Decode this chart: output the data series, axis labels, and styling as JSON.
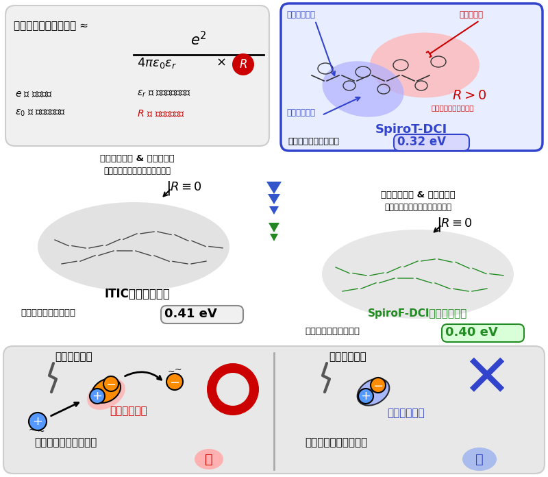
{
  "bg": "#ffffff",
  "formula_box_bg": "#f0f0f0",
  "formula_box_edge": "#cccccc",
  "spiroT_box_bg": "#e8eeff",
  "spiroT_box_edge": "#3344cc",
  "middle_bg": "#f8f8f8",
  "bottom_bg": "#e8e8e8",
  "bottom_edge": "#cccccc",
  "red": "#cc0000",
  "blue": "#3344cc",
  "green": "#228b22",
  "orange": "#ff8c00",
  "pink": "#ffb6c1",
  "lightblue": "#6699ff",
  "spiroT_name": "SpiroT-DCI",
  "spiroT_energy_val": "0.32",
  "itic_name": "ITIC（標準材料）",
  "itic_energy_val": "0.41",
  "spiroF_name": "SpiroF-DCI（比較材料）",
  "spiroF_energy_val": "0.40",
  "t_homo": "最高被占軌道",
  "t_lumo": "最低空軌道",
  "t_r_pos": "R > 0",
  "t_r_pos_sub": "（分離した軌道分布）",
  "t_r_zero": "R≡0",
  "t_homoLumo": "最高被占軌道 & 最低空軌道",
  "t_dist": "（分子のほぼ同じ場所に分布）",
  "t_exciton": "励起子束縛エネルギー",
  "t_light": "光エネルギー",
  "t_easy": "分離しやすい",
  "t_hard": "分離しにくい",
  "t_small": "小",
  "t_large": "大",
  "t_formula": "励起子束縛エネルギー ≈",
  "t_e_desc": "$e$ ： 電気素量",
  "t_eps0_desc": "$\\varepsilon_0$ ： 真空の誘電率",
  "t_epsr_desc": "$\\varepsilon_r$ ： 材料の比誘電率",
  "t_R_desc": "$R$ ： 電荷間の距離"
}
